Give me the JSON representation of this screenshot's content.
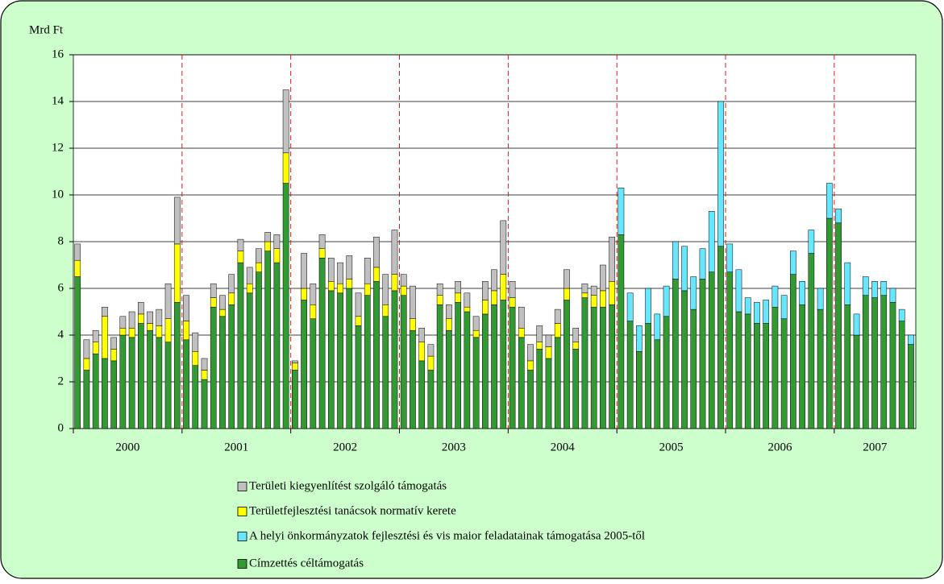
{
  "chart_data": {
    "type": "stacked_bar",
    "y_axis_label": "Mrd Ft",
    "ylim": [
      0,
      16
    ],
    "yticks": [
      0,
      2,
      4,
      6,
      8,
      10,
      12,
      14,
      16
    ],
    "grid": true,
    "year_labels": [
      "2000",
      "2001",
      "2002",
      "2003",
      "2004",
      "2005",
      "2006",
      "2007"
    ],
    "categories": [
      null,
      null,
      null,
      null,
      null,
      null,
      null,
      null,
      null,
      null,
      null,
      null,
      null,
      null,
      null,
      null,
      null,
      null,
      null,
      null,
      null,
      null,
      null,
      null,
      null,
      null,
      null,
      null,
      null,
      null,
      null,
      null,
      null,
      null,
      null,
      null,
      null,
      null,
      null,
      null,
      null,
      null,
      null,
      null,
      null,
      null,
      null,
      null,
      null,
      null,
      null,
      null,
      null,
      null,
      null,
      null,
      null,
      null,
      null,
      null,
      null,
      null,
      null,
      null,
      null,
      null,
      null,
      null,
      null,
      null,
      null,
      null,
      null,
      null,
      null,
      null,
      null,
      null,
      null,
      null,
      null,
      null,
      null,
      null,
      null,
      null,
      null,
      null,
      null,
      null,
      null,
      null,
      null
    ],
    "series": [
      {
        "name": "Címzettés céltámogatás",
        "color": "#339933",
        "values": [
          6.5,
          2.5,
          3.2,
          3.0,
          2.9,
          4.0,
          3.9,
          4.5,
          4.2,
          3.9,
          3.7,
          5.4,
          3.8,
          2.7,
          2.1,
          5.2,
          4.8,
          5.3,
          7.1,
          5.8,
          6.7,
          7.6,
          7.1,
          10.5,
          2.5,
          5.5,
          4.7,
          7.3,
          5.9,
          5.8,
          6.0,
          4.4,
          5.7,
          6.3,
          4.8,
          5.9,
          5.7,
          4.2,
          2.9,
          2.5,
          5.3,
          4.2,
          5.4,
          5.0,
          3.9,
          4.9,
          5.3,
          5.5,
          5.2,
          3.9,
          2.5,
          3.4,
          3.0,
          3.9,
          5.5,
          3.4,
          5.6,
          5.2,
          5.2,
          5.3,
          8.3,
          4.6,
          3.3,
          4.5,
          3.8,
          4.8,
          6.4,
          5.9,
          5.1,
          6.4,
          6.7,
          7.8,
          6.7,
          5.0,
          4.9,
          4.5,
          4.5,
          5.2,
          4.7,
          6.6,
          5.3,
          7.5,
          5.1,
          9.0,
          8.8,
          5.3,
          4.0,
          5.7,
          5.6,
          5.7,
          5.4,
          4.6,
          3.6
        ]
      },
      {
        "name": "A helyi önkormányzatok fejlesztési és vis maior feladatainak támogatása 2005-től",
        "color": "#66e6ff",
        "values": [
          0,
          0,
          0,
          0,
          0,
          0,
          0,
          0,
          0,
          0,
          0,
          0,
          0,
          0,
          0,
          0,
          0,
          0,
          0,
          0,
          0,
          0,
          0,
          0,
          0,
          0,
          0,
          0,
          0,
          0,
          0,
          0,
          0,
          0,
          0,
          0,
          0,
          0,
          0,
          0,
          0,
          0,
          0,
          0,
          0,
          0,
          0,
          0,
          0,
          0,
          0,
          0,
          0,
          0,
          0,
          0,
          0,
          0,
          0,
          0,
          2.0,
          1.2,
          1.1,
          1.5,
          1.1,
          1.3,
          1.6,
          1.9,
          1.4,
          1.3,
          2.6,
          6.2,
          1.2,
          1.8,
          0.7,
          0.9,
          1.0,
          0.9,
          1.0,
          1.0,
          1.0,
          1.0,
          0.9,
          1.5,
          0.6,
          1.8,
          0.9,
          0.8,
          0.7,
          0.6,
          0.6,
          0.5,
          0.4
        ]
      },
      {
        "name": "Területfejlesztési tanácsok normatív kerete",
        "color": "#ffff00",
        "values": [
          0.7,
          0.5,
          0.5,
          1.8,
          0.5,
          0.3,
          0.4,
          0.4,
          0.3,
          0.5,
          1.0,
          2.5,
          0.8,
          0.6,
          0.4,
          0.4,
          0.3,
          0.5,
          0.5,
          0.4,
          0.4,
          0.4,
          0.6,
          1.3,
          0.3,
          0.5,
          0.6,
          0.4,
          0.4,
          0.4,
          0.4,
          0.4,
          0.5,
          0.6,
          0.5,
          0.7,
          0.4,
          0.5,
          0.8,
          0.6,
          0.4,
          0.5,
          0.4,
          0.2,
          0.3,
          0.6,
          0.6,
          1.1,
          0.4,
          0.4,
          0.4,
          0.3,
          0.5,
          0.6,
          0.5,
          0.3,
          0.2,
          0.5,
          0.7,
          1.0,
          0,
          0,
          0,
          0,
          0,
          0,
          0,
          0,
          0,
          0,
          0,
          0,
          0,
          0,
          0,
          0,
          0,
          0,
          0,
          0,
          0,
          0,
          0,
          0,
          0,
          0,
          0,
          0,
          0,
          0,
          0,
          0,
          0
        ]
      },
      {
        "name": "Területi kiegyenlítést szolgáló támogatás",
        "color": "#c0c0c0",
        "values": [
          0.7,
          0.8,
          0.5,
          0.4,
          0.5,
          0.5,
          0.7,
          0.5,
          0.5,
          0.7,
          1.5,
          2.0,
          1.1,
          0.8,
          0.5,
          0.6,
          0.6,
          0.8,
          0.5,
          0.7,
          0.6,
          0.4,
          0.6,
          2.7,
          0.1,
          1.5,
          0.9,
          0.6,
          1.0,
          0.9,
          1.0,
          1.0,
          1.1,
          1.3,
          1.3,
          1.9,
          0.5,
          1.4,
          0.6,
          0.5,
          0.5,
          0.6,
          0.5,
          0.6,
          0.6,
          0.8,
          0.9,
          2.3,
          0.7,
          0.9,
          0.7,
          0.7,
          0.5,
          0.6,
          0.8,
          0.6,
          0.4,
          0.4,
          1.1,
          1.9,
          0,
          0,
          0,
          0,
          0,
          0,
          0,
          0,
          0,
          0,
          0,
          0,
          0,
          0,
          0,
          0,
          0,
          0,
          0,
          0,
          0,
          0,
          0,
          0,
          0,
          0,
          0,
          0,
          0,
          0,
          0,
          0,
          0
        ]
      }
    ]
  }
}
